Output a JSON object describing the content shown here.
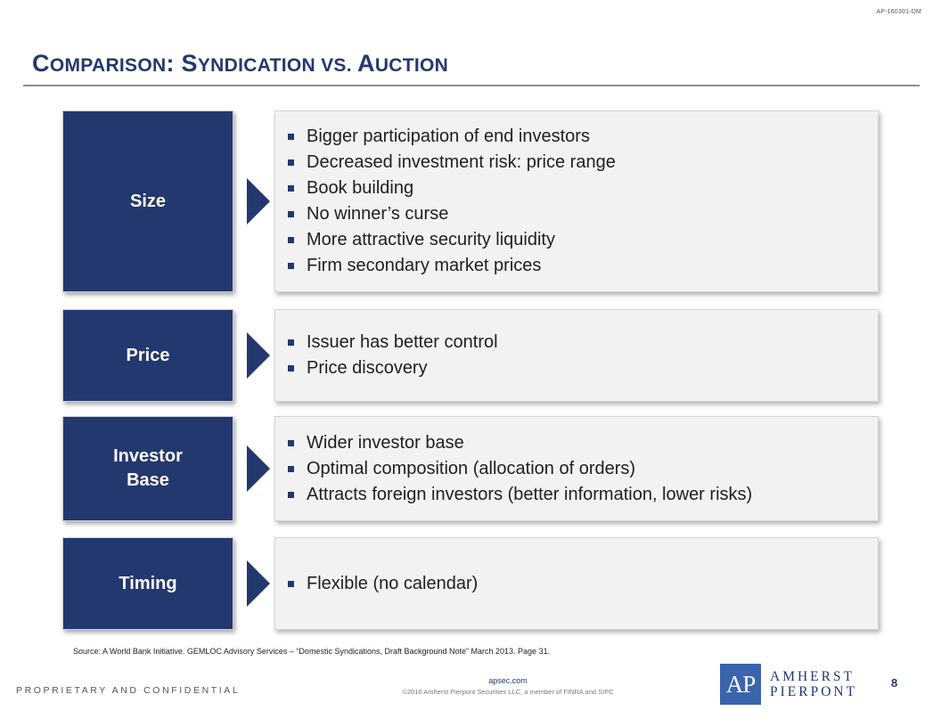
{
  "header": {
    "doc_id": "AP-160301-DM"
  },
  "title": {
    "parts": [
      {
        "cap": "C",
        "rest": "OMPARISON"
      },
      {
        "cap": ": S",
        "rest": "YNDICATION VS. "
      },
      {
        "cap": "A",
        "rest": "UCTION"
      }
    ]
  },
  "rows": [
    {
      "label": "Size",
      "bullets": [
        "Bigger participation of end investors",
        "Decreased investment risk: price range",
        "Book building",
        "No winner’s curse",
        "More attractive security liquidity",
        "Firm secondary market prices"
      ]
    },
    {
      "label": "Price",
      "bullets": [
        "Issuer has better control",
        "Price discovery"
      ]
    },
    {
      "label": "Investor\nBase",
      "bullets": [
        "Wider investor base",
        "Optimal composition (allocation of orders)",
        "Attracts foreign investors (better information, lower risks)"
      ]
    },
    {
      "label": "Timing",
      "bullets": [
        "Flexible (no calendar)"
      ]
    }
  ],
  "footer": {
    "source": "Source: A World Bank Initiative. GEMLOC Advisory Services – “Domestic Syndications, Draft Background Note” March 2013. Page 31.",
    "proprietary": "PROPRIETARY AND CONFIDENTIAL",
    "website": "apsec.com",
    "copyright": "©2016 Amherst Pierpont Securities LLC, a member of FINRA and SIPC",
    "page_number": "8"
  },
  "logo": {
    "mark": "AP",
    "line1": "AMHERST",
    "line2": "PIERPONT"
  },
  "colors": {
    "accent": "#23386e",
    "logo_blue": "#3a64ab",
    "panel": "#f2f2f2"
  }
}
